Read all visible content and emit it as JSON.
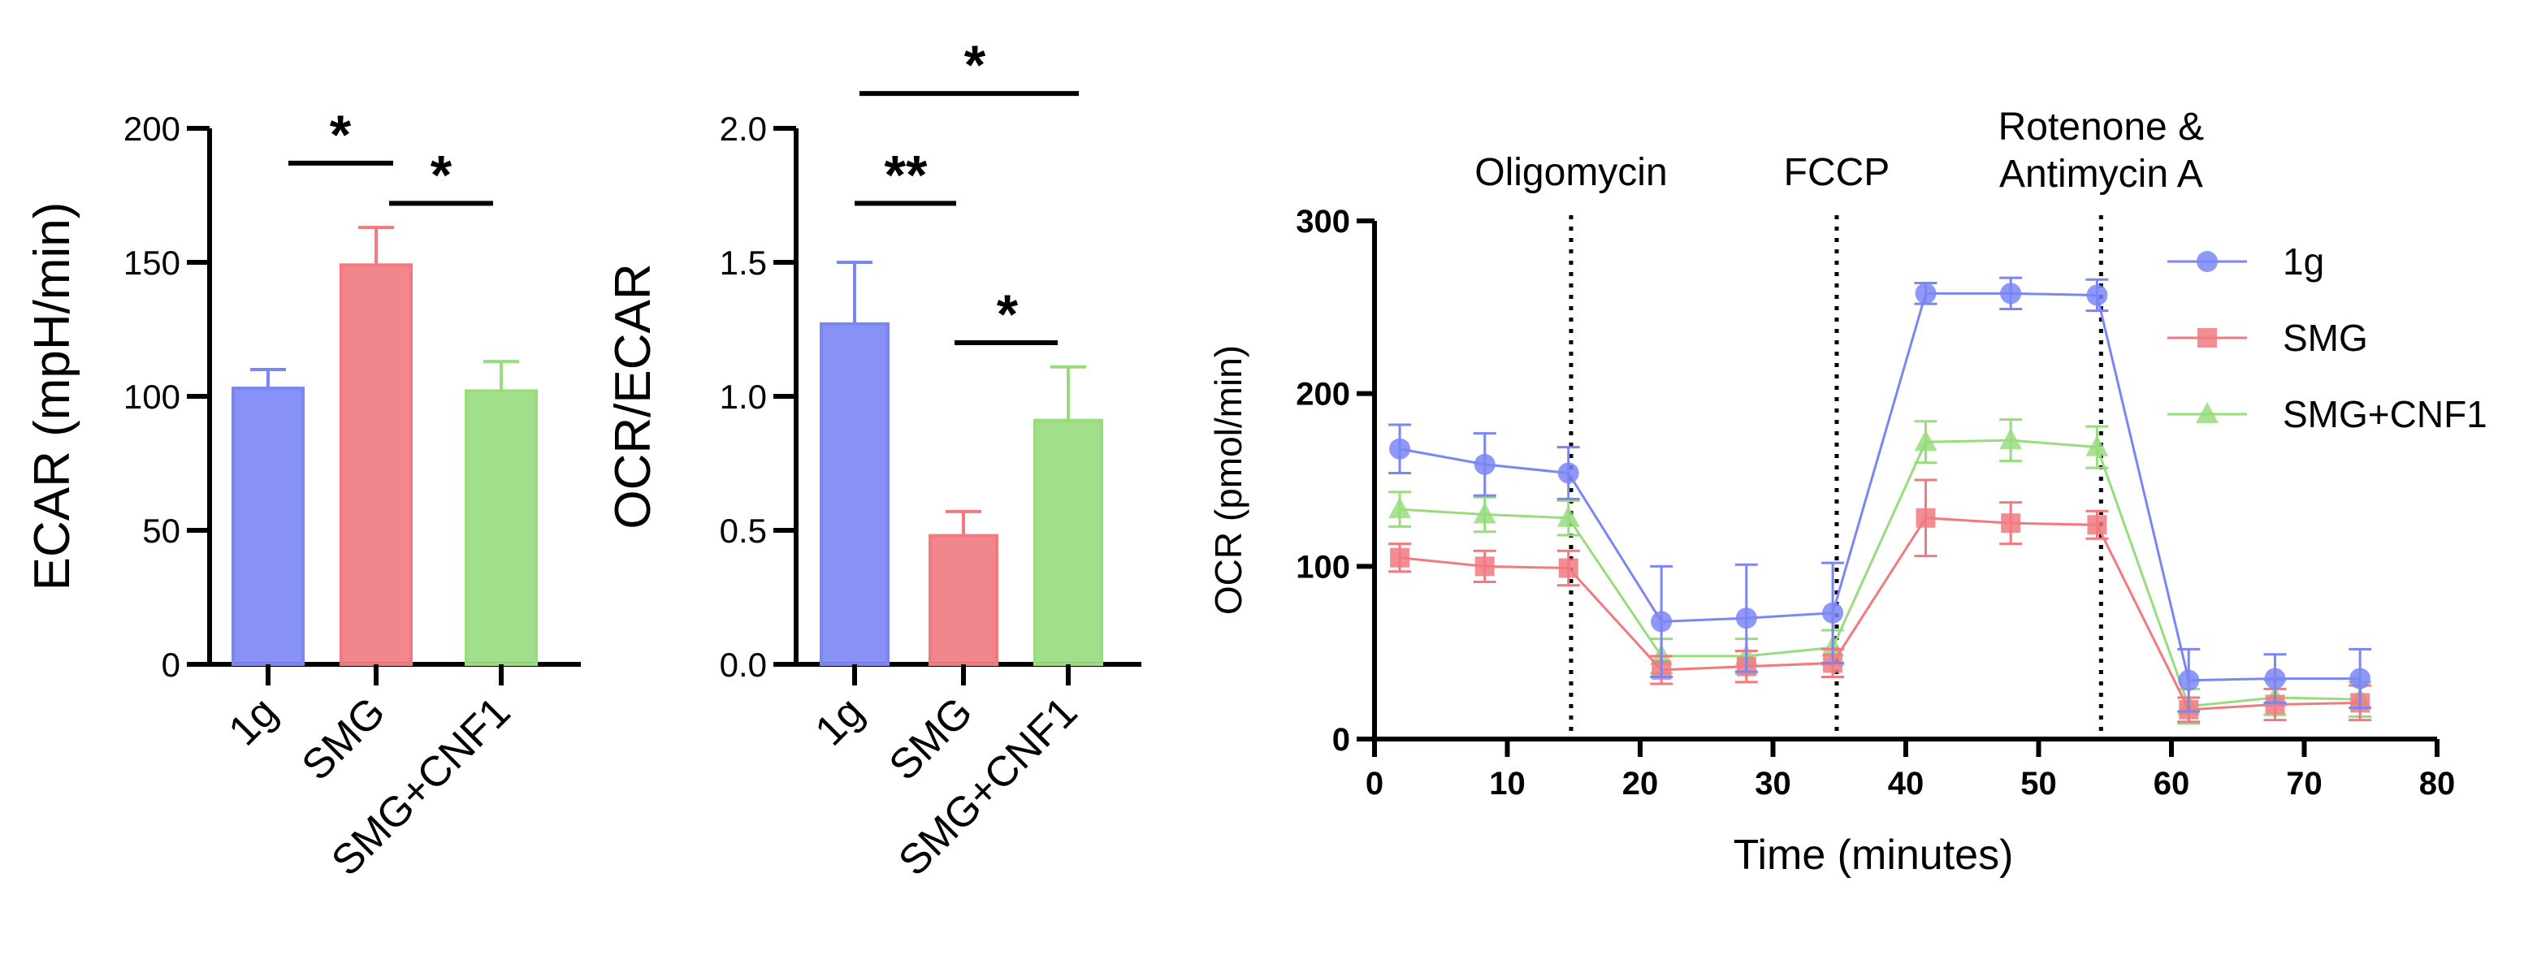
{
  "colors": {
    "g1": "#7b86f5",
    "smg": "#f07a80",
    "cnf1": "#98dc7e"
  },
  "chart_data": [
    {
      "type": "bar",
      "ylabel": "ECAR (mpH/min)",
      "ylim": [
        0,
        200
      ],
      "yticks": [
        0,
        50,
        100,
        150,
        200
      ],
      "categories": [
        "1g",
        "SMG",
        "SMG+CNF1"
      ],
      "values": [
        103,
        149,
        102
      ],
      "errors": [
        7,
        14,
        11
      ],
      "significance": [
        {
          "from": 0,
          "to": 1,
          "label": "*",
          "y": 187
        },
        {
          "from": 1,
          "to": 2,
          "label": "*",
          "y": 172
        }
      ]
    },
    {
      "type": "bar",
      "ylabel": "OCR/ECAR",
      "ylim": [
        0,
        2.0
      ],
      "yticks": [
        "0.0",
        "0.5",
        "1.0",
        "1.5",
        "2.0"
      ],
      "categories": [
        "1g",
        "SMG",
        "SMG+CNF1"
      ],
      "values": [
        1.27,
        0.48,
        0.91
      ],
      "errors": [
        0.23,
        0.09,
        0.2
      ],
      "significance": [
        {
          "from": 0,
          "to": 2,
          "label": "*",
          "y": 2.13
        },
        {
          "from": 0,
          "to": 1,
          "label": "**",
          "y": 1.72
        },
        {
          "from": 1,
          "to": 2,
          "label": "*",
          "y": 1.2
        }
      ]
    },
    {
      "type": "line",
      "xlabel": "Time (minutes)",
      "ylabel": "OCR (pmol/min)",
      "xlim": [
        0,
        80
      ],
      "ylim": [
        0,
        300
      ],
      "xticks": [
        0,
        10,
        20,
        30,
        40,
        50,
        60,
        70,
        80
      ],
      "yticks": [
        0,
        100,
        200,
        300
      ],
      "legend": "top-right",
      "x": [
        1.9,
        8.3,
        14.6,
        21.6,
        28.0,
        34.5,
        41.5,
        47.9,
        54.4,
        61.3,
        67.8,
        74.2
      ],
      "series": [
        {
          "name": "1g",
          "marker": "circle",
          "values": [
            168,
            159,
            154,
            68,
            70,
            73,
            258,
            258,
            257,
            34,
            35,
            35
          ],
          "errors": [
            14,
            18,
            15,
            32,
            31,
            29,
            6,
            9,
            9,
            18,
            14,
            17
          ]
        },
        {
          "name": "SMG",
          "marker": "square",
          "values": [
            105,
            100,
            99,
            40,
            42,
            44,
            128,
            125,
            124,
            17,
            20,
            21
          ],
          "errors": [
            8,
            9,
            10,
            8,
            9,
            8,
            22,
            12,
            8,
            7,
            9,
            10
          ]
        },
        {
          "name": "SMG+CNF1",
          "marker": "triangle",
          "values": [
            133,
            130,
            128,
            48,
            48,
            53,
            172,
            173,
            169,
            19,
            24,
            23
          ],
          "errors": [
            10,
            10,
            10,
            10,
            10,
            10,
            12,
            12,
            12,
            10,
            10,
            10
          ]
        }
      ],
      "annotations": [
        {
          "x": 14.8,
          "label": "Oligomycin"
        },
        {
          "x": 34.8,
          "label": "FCCP"
        },
        {
          "x": 54.7,
          "label": "Rotenone &\nAntimycin A"
        }
      ]
    }
  ]
}
